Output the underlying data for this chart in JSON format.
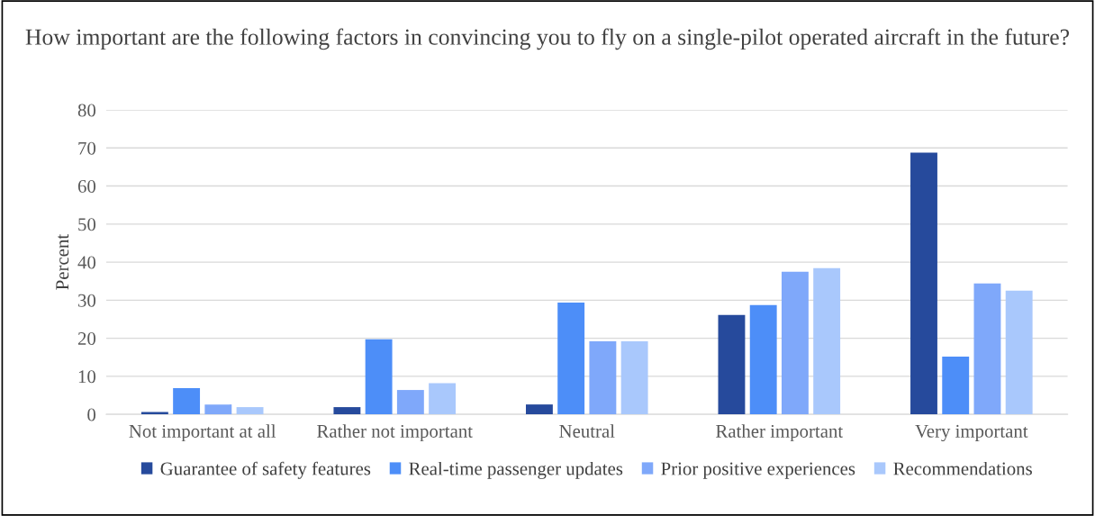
{
  "chart_data": {
    "type": "bar",
    "title": "How important are the following factors in convincing you to fly on a single-pilot operated aircraft in the future?",
    "ylabel": "Percent",
    "categories": [
      "Not important at all",
      "Rather not important",
      "Neutral",
      "Rather important",
      "Very important"
    ],
    "series": [
      {
        "name": "Guarantee of safety features",
        "color": "#264a9c",
        "values": [
          0.6,
          1.9,
          2.6,
          26.1,
          68.8
        ]
      },
      {
        "name": "Real-time passenger updates",
        "color": "#4d8ef8",
        "values": [
          6.9,
          19.7,
          29.4,
          28.7,
          15.2
        ]
      },
      {
        "name": "Prior positive experiences",
        "color": "#7fa8fa",
        "values": [
          2.6,
          6.4,
          19.2,
          37.5,
          34.4
        ]
      },
      {
        "name": "Recommendations",
        "color": "#a9c8fc",
        "values": [
          1.9,
          8.2,
          19.2,
          38.4,
          32.5
        ]
      }
    ],
    "ylim": [
      0,
      80
    ],
    "yticks": [
      0,
      10,
      20,
      30,
      40,
      50,
      60,
      70,
      80
    ],
    "grid": "y",
    "legend": "bottom"
  }
}
